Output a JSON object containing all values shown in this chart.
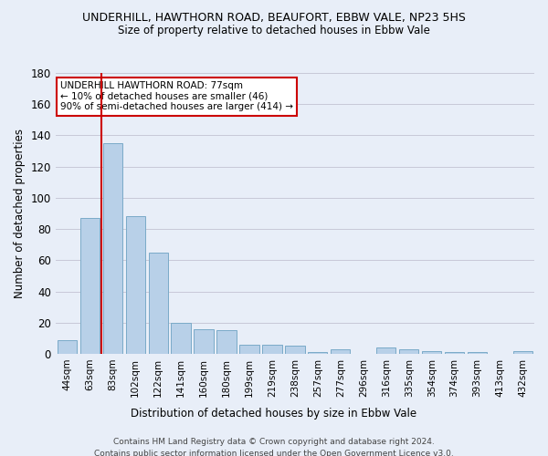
{
  "title": "UNDERHILL, HAWTHORN ROAD, BEAUFORT, EBBW VALE, NP23 5HS",
  "subtitle": "Size of property relative to detached houses in Ebbw Vale",
  "xlabel": "Distribution of detached houses by size in Ebbw Vale",
  "ylabel": "Number of detached properties",
  "categories": [
    "44sqm",
    "63sqm",
    "83sqm",
    "102sqm",
    "122sqm",
    "141sqm",
    "160sqm",
    "180sqm",
    "199sqm",
    "219sqm",
    "238sqm",
    "257sqm",
    "277sqm",
    "296sqm",
    "316sqm",
    "335sqm",
    "354sqm",
    "374sqm",
    "393sqm",
    "413sqm",
    "432sqm"
  ],
  "values": [
    9,
    87,
    135,
    88,
    65,
    20,
    16,
    15,
    6,
    6,
    5,
    1,
    3,
    0,
    4,
    3,
    2,
    1,
    1,
    0,
    2
  ],
  "bar_color": "#b8d0e8",
  "bar_edge_color": "#7aaac8",
  "background_color": "#e8eef8",
  "grid_color": "#c8c8d8",
  "vline_color": "#cc0000",
  "annotation_text": "UNDERHILL HAWTHORN ROAD: 77sqm\n← 10% of detached houses are smaller (46)\n90% of semi-detached houses are larger (414) →",
  "annotation_box_color": "#ffffff",
  "annotation_box_edge": "#cc0000",
  "ylim": [
    0,
    180
  ],
  "yticks": [
    0,
    20,
    40,
    60,
    80,
    100,
    120,
    140,
    160,
    180
  ],
  "footer_line1": "Contains HM Land Registry data © Crown copyright and database right 2024.",
  "footer_line2": "Contains public sector information licensed under the Open Government Licence v3.0."
}
